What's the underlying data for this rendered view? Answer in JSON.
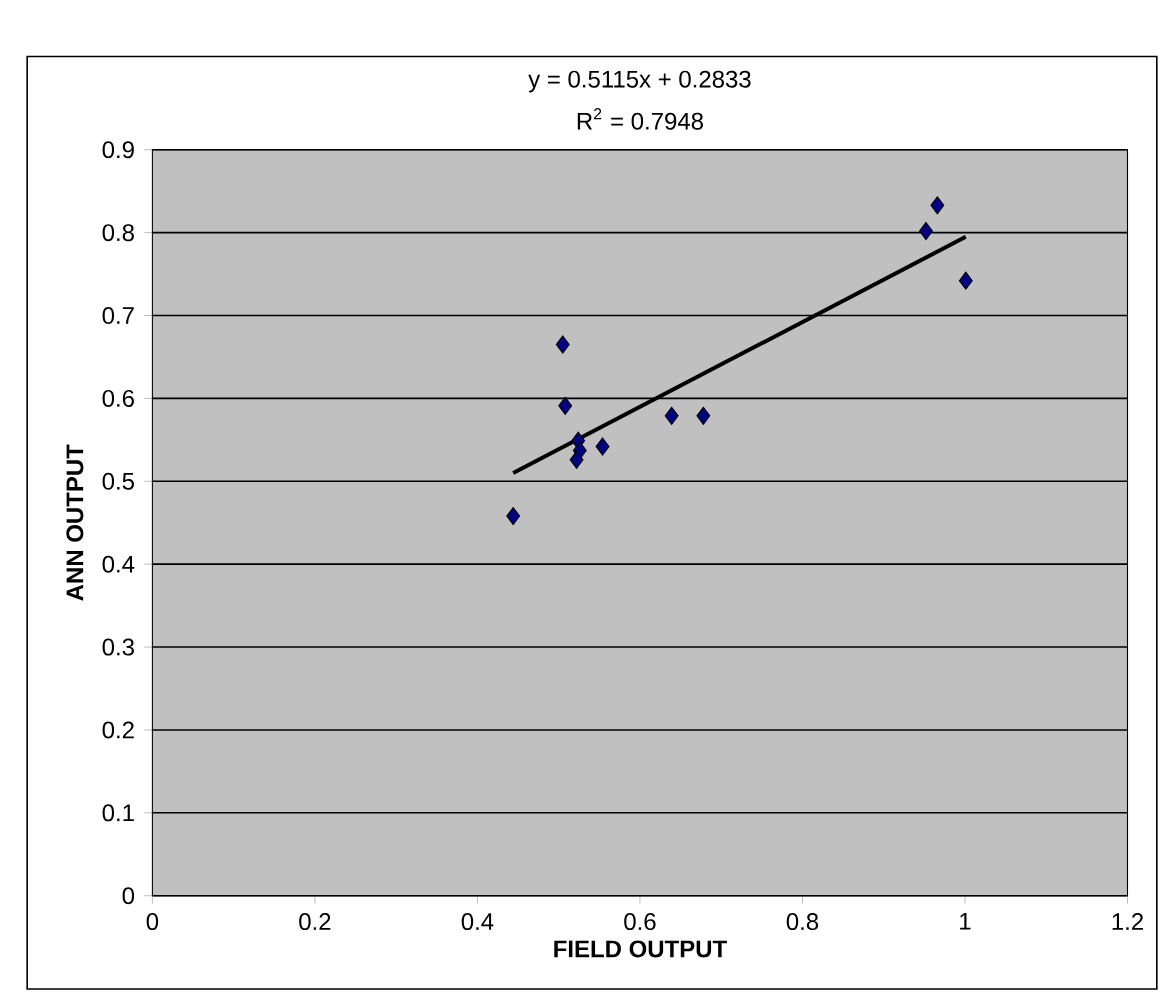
{
  "chart_data": {
    "type": "scatter",
    "annotations": [
      "y = 0.5115x + 0.2833",
      "R$^{2}$ = 0.7948"
    ],
    "xlabel": "FIELD OUTPUT",
    "ylabel": "ANN OUTPUT",
    "xlim": [
      0,
      1.2
    ],
    "xticks": [
      0,
      0.2,
      0.4,
      0.6,
      0.8,
      1,
      1.2
    ],
    "ylim": [
      0,
      0.9
    ],
    "yticks": [
      0,
      0.1,
      0.2,
      0.3,
      0.4,
      0.5,
      0.6,
      0.7,
      0.8,
      0.9
    ],
    "grid": "y",
    "series": [
      {
        "color": "#000080",
        "marker": "diamond",
        "x": [
          0.444,
          0.505,
          0.508,
          0.524,
          0.526,
          0.522,
          0.554,
          0.639,
          0.678,
          0.966,
          0.952,
          1.001
        ],
        "values": [
          0.458,
          0.665,
          0.591,
          0.549,
          0.537,
          0.526,
          0.542,
          0.579,
          0.579,
          0.833,
          0.802,
          0.742
        ]
      },
      {
        "type": "line",
        "color": "#000000",
        "marker": "none",
        "x": [
          0.444,
          1.001
        ],
        "values": [
          0.51,
          0.795
        ]
      }
    ]
  }
}
